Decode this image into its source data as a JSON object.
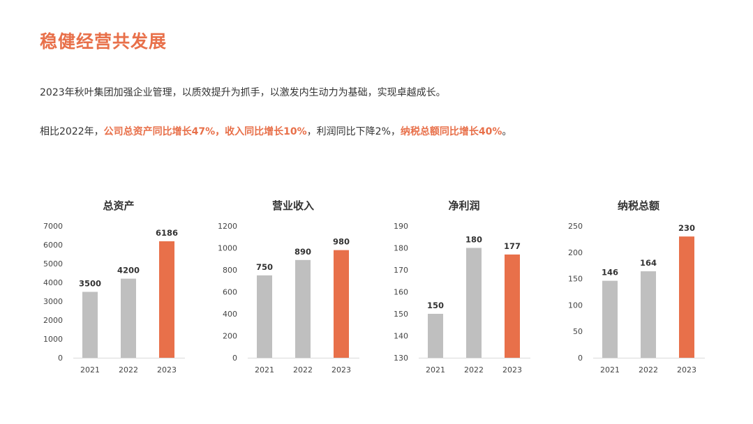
{
  "page": {
    "title": "稳健经营共发展",
    "paragraph1": "2023年秋叶集团加强企业管理，以质效提升为抓手，以激发内生动力为基础，实现卓越成长。",
    "paragraph2": {
      "seg1": "相比2022年，",
      "seg2": "公司总资产同比增长47%，收入同比增长10%",
      "seg3": "，利润同比下降2%，",
      "seg4": "纳税总额同比增长40%",
      "seg5": "。"
    }
  },
  "colors": {
    "accent": "#E8704A",
    "bar_gray": "#BFBFBF",
    "bar_highlight": "#E8704A"
  },
  "chart_data": [
    {
      "type": "bar",
      "title": "总资产",
      "categories": [
        "2021",
        "2022",
        "2023"
      ],
      "values": [
        3500,
        4200,
        6186
      ],
      "ylim": [
        0,
        7000
      ],
      "yticks": [
        0,
        1000,
        2000,
        3000,
        4000,
        5000,
        6000,
        7000
      ],
      "highlight_index": 2
    },
    {
      "type": "bar",
      "title": "营业收入",
      "categories": [
        "2021",
        "2022",
        "2023"
      ],
      "values": [
        750,
        890,
        980
      ],
      "ylim": [
        0,
        1200
      ],
      "yticks": [
        0,
        200,
        400,
        600,
        800,
        1000,
        1200
      ],
      "highlight_index": 2
    },
    {
      "type": "bar",
      "title": "净利润",
      "categories": [
        "2021",
        "2022",
        "2023"
      ],
      "values": [
        150,
        180,
        177
      ],
      "ylim": [
        130,
        190
      ],
      "yticks": [
        130,
        140,
        150,
        160,
        170,
        180,
        190
      ],
      "highlight_index": 2
    },
    {
      "type": "bar",
      "title": "纳税总额",
      "categories": [
        "2021",
        "2022",
        "2023"
      ],
      "values": [
        146,
        164,
        230
      ],
      "ylim": [
        0,
        250
      ],
      "yticks": [
        0,
        50,
        100,
        150,
        200,
        250
      ],
      "highlight_index": 2
    }
  ]
}
